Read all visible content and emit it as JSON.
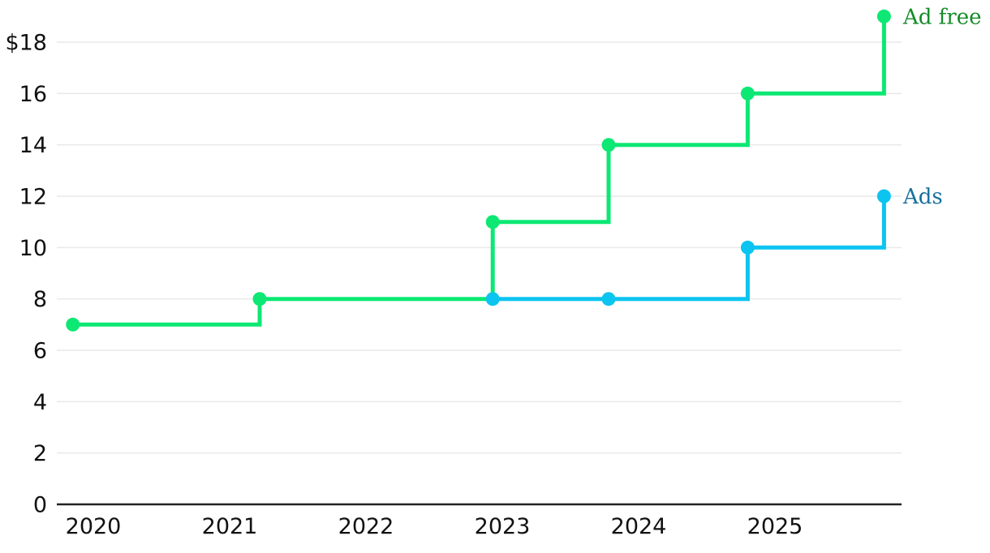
{
  "chart_data": {
    "type": "line",
    "step": true,
    "title": "",
    "xlabel": "",
    "ylabel": "",
    "grid": true,
    "legend_position": "right-of-line-end",
    "colors": {
      "background": "#ffffff",
      "grid": "#e9e9e9",
      "axis": "#222222",
      "tick_text": "#111111"
    },
    "xlim": [
      2019.73,
      2025.93
    ],
    "ylim": [
      0,
      19.6
    ],
    "x_ticks": [
      {
        "value": 2020,
        "label": "2020"
      },
      {
        "value": 2021,
        "label": "2021"
      },
      {
        "value": 2022,
        "label": "2022"
      },
      {
        "value": 2023,
        "label": "2023"
      },
      {
        "value": 2024,
        "label": "2024"
      },
      {
        "value": 2025,
        "label": "2025"
      }
    ],
    "y_ticks": [
      {
        "value": 18,
        "label": "$18"
      },
      {
        "value": 16,
        "label": "16"
      },
      {
        "value": 14,
        "label": "14"
      },
      {
        "value": 12,
        "label": "12"
      },
      {
        "value": 10,
        "label": "10"
      },
      {
        "value": 8,
        "label": "8"
      },
      {
        "value": 6,
        "label": "6"
      },
      {
        "value": 4,
        "label": "4"
      },
      {
        "value": 2,
        "label": "2"
      },
      {
        "value": 0,
        "label": "0"
      }
    ],
    "series": [
      {
        "id": "ad-free",
        "name": "Ad free",
        "line_color": "#0ce873",
        "label_color": "#148c28",
        "points": [
          {
            "x": 2019.85,
            "y": 7
          },
          {
            "x": 2021.22,
            "y": 8
          },
          {
            "x": 2022.93,
            "y": 11
          },
          {
            "x": 2023.78,
            "y": 14
          },
          {
            "x": 2024.8,
            "y": 16
          },
          {
            "x": 2025.8,
            "y": 19
          }
        ]
      },
      {
        "id": "ads",
        "name": "Ads",
        "line_color": "#0cc4f0",
        "label_color": "#17719b",
        "points": [
          {
            "x": 2022.93,
            "y": 8
          },
          {
            "x": 2023.78,
            "y": 8
          },
          {
            "x": 2024.8,
            "y": 10
          },
          {
            "x": 2025.8,
            "y": 12
          }
        ]
      }
    ]
  }
}
